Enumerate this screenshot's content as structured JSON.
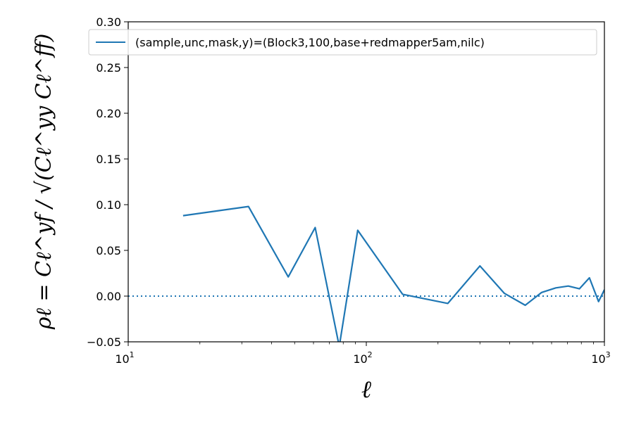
{
  "chart_data": {
    "type": "line",
    "xscale": "log",
    "xlim": [
      10,
      1000
    ],
    "ylim": [
      -0.05,
      0.3
    ],
    "xlabel": "ℓ",
    "ylabel": "ρℓ = Cℓ^yf / √(Cℓ^yy Cℓ^ff)",
    "x_ticks": [
      {
        "value": 10,
        "base": "10",
        "exp": "1"
      },
      {
        "value": 100,
        "base": "10",
        "exp": "2"
      },
      {
        "value": 1000,
        "base": "10",
        "exp": "3"
      }
    ],
    "y_ticks": [
      {
        "value": -0.05,
        "label": "−0.05"
      },
      {
        "value": 0.0,
        "label": "0.00"
      },
      {
        "value": 0.05,
        "label": "0.05"
      },
      {
        "value": 0.1,
        "label": "0.10"
      },
      {
        "value": 0.15,
        "label": "0.15"
      },
      {
        "value": 0.2,
        "label": "0.20"
      },
      {
        "value": 0.25,
        "label": "0.25"
      },
      {
        "value": 0.3,
        "label": "0.30"
      }
    ],
    "reference_line": {
      "y": 0.0,
      "style": "dotted",
      "color": "#1f77b4"
    },
    "legend_position": "top",
    "series": [
      {
        "name": "(sample,unc,mask,y)=(Block3,100,base+redmapper5am,nilc)",
        "color": "#1f77b4",
        "x": [
          17,
          32,
          47,
          61,
          77,
          92,
          142,
          220,
          300,
          380,
          465,
          545,
          625,
          705,
          785,
          865,
          945,
          1000
        ],
        "y": [
          0.088,
          0.098,
          0.021,
          0.075,
          -0.055,
          0.072,
          0.002,
          -0.008,
          0.033,
          0.003,
          -0.01,
          0.004,
          0.009,
          0.011,
          0.008,
          0.02,
          -0.006,
          0.007
        ]
      }
    ]
  }
}
